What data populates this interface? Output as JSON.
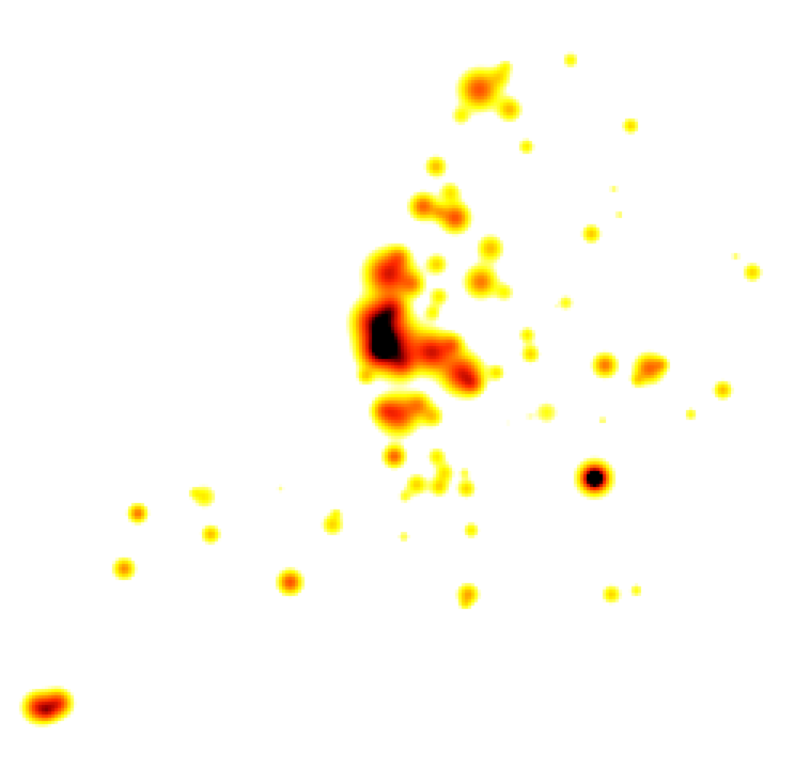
{
  "image": {
    "kind": "density-heatmap",
    "background_color": "#ffffff",
    "colormap": [
      "#ffffff",
      "#ffff00",
      "#ff8c00",
      "#ff2a00",
      "#000000"
    ],
    "colormap_names": [
      "white",
      "yellow",
      "orange",
      "red",
      "black"
    ]
  }
}
